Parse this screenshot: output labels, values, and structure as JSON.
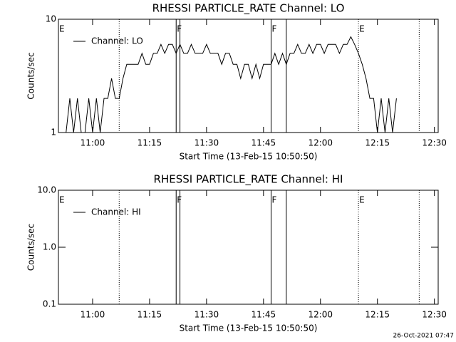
{
  "chart_data": [
    {
      "type": "line",
      "title": "RHESSI PARTICLE_RATE Channel: LO",
      "xlabel": "Start Time (13-Feb-15 10:50:50)",
      "ylabel": "Counts/sec",
      "log_y": true,
      "xlim": [
        "10:51",
        "12:31"
      ],
      "xticks": [
        "11:00",
        "11:15",
        "11:30",
        "11:45",
        "12:00",
        "12:15",
        "12:30"
      ],
      "ylim": [
        1,
        10
      ],
      "yticks": [
        1,
        10
      ],
      "legend": "upper left",
      "series": [
        {
          "name": "Channel: LO",
          "color": "#000000",
          "x": [
            "10:53",
            "10:54",
            "10:55",
            "10:56",
            "10:57",
            "10:58",
            "10:59",
            "11:00",
            "11:01",
            "11:02",
            "11:03",
            "11:04",
            "11:05",
            "11:06",
            "11:07",
            "11:08",
            "11:09",
            "11:10",
            "11:11",
            "11:12",
            "11:13",
            "11:14",
            "11:15",
            "11:16",
            "11:17",
            "11:18",
            "11:19",
            "11:20",
            "11:21",
            "11:22",
            "11:23",
            "11:24",
            "11:25",
            "11:26",
            "11:27",
            "11:28",
            "11:29",
            "11:30",
            "11:31",
            "11:32",
            "11:33",
            "11:34",
            "11:35",
            "11:36",
            "11:37",
            "11:38",
            "11:39",
            "11:40",
            "11:41",
            "11:42",
            "11:43",
            "11:44",
            "11:45",
            "11:46",
            "11:47",
            "11:48",
            "11:49",
            "11:50",
            "11:51",
            "11:52",
            "11:53",
            "11:54",
            "11:55",
            "11:56",
            "11:57",
            "11:58",
            "11:59",
            "12:00",
            "12:01",
            "12:02",
            "12:03",
            "12:04",
            "12:05",
            "12:06",
            "12:07",
            "12:08",
            "12:09",
            "12:10",
            "12:11",
            "12:12",
            "12:13",
            "12:14",
            "12:15",
            "12:16",
            "12:17",
            "12:18",
            "12:19",
            "12:20"
          ],
          "values": [
            1,
            2,
            1,
            2,
            1,
            1,
            2,
            1,
            2,
            1,
            2,
            2,
            3,
            2,
            2,
            3,
            4,
            4,
            4,
            4,
            5,
            4,
            4,
            5,
            5,
            6,
            5,
            6,
            6,
            5,
            6,
            5,
            5,
            6,
            5,
            5,
            5,
            6,
            5,
            5,
            5,
            4,
            5,
            5,
            4,
            4,
            3,
            4,
            4,
            3,
            4,
            3,
            4,
            4,
            4,
            5,
            4,
            5,
            4,
            5,
            5,
            6,
            5,
            5,
            6,
            5,
            6,
            6,
            5,
            6,
            6,
            6,
            5,
            6,
            6,
            7,
            6,
            5,
            4,
            3,
            2,
            2,
            1,
            2,
            1,
            2,
            1,
            2
          ]
        }
      ],
      "flags": [
        {
          "x": "11:07",
          "style": "dotted"
        },
        {
          "x": "11:22",
          "style": "solid"
        },
        {
          "x": "11:23",
          "style": "solid"
        },
        {
          "x": "11:47",
          "style": "solid"
        },
        {
          "x": "11:51",
          "style": "solid"
        },
        {
          "x": "12:10",
          "style": "dotted"
        },
        {
          "x": "12:26",
          "style": "dotted"
        }
      ],
      "flag_labels": [
        {
          "x": "10:51",
          "text": "E"
        },
        {
          "x": "11:22",
          "text": "F"
        },
        {
          "x": "11:47",
          "text": "F"
        },
        {
          "x": "12:10",
          "text": "E"
        }
      ]
    },
    {
      "type": "line",
      "title": "RHESSI PARTICLE_RATE Channel: HI",
      "xlabel": "Start Time (13-Feb-15 10:50:50)",
      "ylabel": "Counts/sec",
      "log_y": true,
      "xlim": [
        "10:51",
        "12:31"
      ],
      "xticks": [
        "11:00",
        "11:15",
        "11:30",
        "11:45",
        "12:00",
        "12:15",
        "12:30"
      ],
      "ylim": [
        0.1,
        10
      ],
      "yticks": [
        0.1,
        {
          "value": 1,
          "label": "1.0"
        },
        {
          "value": 10,
          "label": "10.0"
        }
      ],
      "legend": "upper left",
      "series": [
        {
          "name": "Channel: HI",
          "color": "#000000",
          "x": [],
          "values": []
        }
      ],
      "flags": [
        {
          "x": "11:07",
          "style": "dotted"
        },
        {
          "x": "11:22",
          "style": "solid"
        },
        {
          "x": "11:23",
          "style": "solid"
        },
        {
          "x": "11:47",
          "style": "solid"
        },
        {
          "x": "11:51",
          "style": "solid"
        },
        {
          "x": "12:10",
          "style": "dotted"
        },
        {
          "x": "12:26",
          "style": "dotted"
        }
      ],
      "flag_labels": [
        {
          "x": "10:51",
          "text": "E"
        },
        {
          "x": "11:22",
          "text": "F"
        },
        {
          "x": "11:47",
          "text": "F"
        },
        {
          "x": "12:10",
          "text": "E"
        }
      ]
    }
  ],
  "footer": "26-Oct-2021 07:47"
}
